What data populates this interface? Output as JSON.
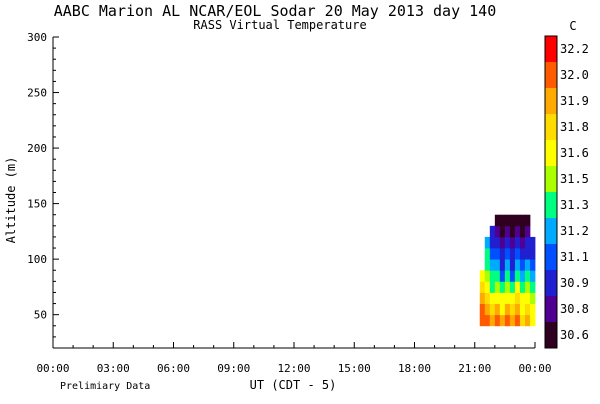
{
  "chart_data": {
    "type": "heatmap",
    "title": "AABC Marion AL  NCAR/EOL Sodar  20 May 2013  day 140",
    "subtitle": "RASS Virtual Temperature",
    "xlabel": "UT  (CDT - 5)",
    "ylabel": "Altitude (m)",
    "footer_left": "Prelimiary Data",
    "x_tick_labels": [
      "00:00",
      "03:00",
      "06:00",
      "09:00",
      "12:00",
      "15:00",
      "18:00",
      "21:00",
      "00:00"
    ],
    "x_ticks_hours": [
      0,
      3,
      6,
      9,
      12,
      15,
      18,
      21,
      24
    ],
    "xlim_hours": [
      0,
      24
    ],
    "y_ticks": [
      50,
      100,
      150,
      200,
      250,
      300
    ],
    "ylim": [
      20,
      300
    ],
    "colorbar": {
      "unit": "C",
      "labels": [
        "32.2",
        "32.0",
        "31.9",
        "31.8",
        "31.6",
        "31.5",
        "31.3",
        "31.2",
        "31.1",
        "30.9",
        "30.8",
        "30.6"
      ],
      "colors": [
        "#ff0000",
        "#ff5a00",
        "#ffaa00",
        "#ffdc00",
        "#ffff00",
        "#aaff00",
        "#00ff80",
        "#00aaff",
        "#0050ff",
        "#2020d0",
        "#500090",
        "#300020"
      ]
    },
    "data": {
      "times_hours": [
        21.25,
        21.5,
        21.75,
        22.0,
        22.25,
        22.5,
        22.75,
        23.0,
        23.25,
        23.5,
        23.75
      ],
      "altitudes_m": [
        40,
        50,
        60,
        70,
        80,
        90,
        100,
        110,
        120,
        130
      ],
      "top_altitude_m": [
        80,
        110,
        120,
        140,
        140,
        140,
        130,
        140,
        140,
        160,
        110
      ],
      "values_C": [
        [
          32.1,
          32.1,
          31.9,
          32.0,
          31.9,
          32.1,
          31.9,
          32.0,
          31.8,
          31.9,
          31.7
        ],
        [
          32.0,
          31.9,
          31.8,
          31.9,
          31.7,
          31.9,
          31.8,
          31.9,
          31.7,
          31.8,
          31.6
        ],
        [
          31.9,
          31.8,
          31.6,
          31.7,
          31.6,
          31.7,
          31.6,
          31.8,
          31.6,
          31.7,
          31.5
        ],
        [
          31.8,
          31.6,
          31.4,
          31.5,
          31.3,
          31.5,
          31.3,
          31.6,
          31.4,
          31.5,
          31.3
        ],
        [
          31.7,
          31.5,
          31.3,
          31.3,
          31.1,
          31.3,
          31.1,
          31.4,
          31.2,
          31.3,
          31.2
        ],
        [
          31.6,
          31.4,
          31.2,
          31.2,
          31.0,
          31.2,
          31.0,
          31.2,
          31.1,
          31.2,
          31.1
        ],
        [
          31.5,
          31.3,
          31.1,
          31.1,
          30.9,
          31.1,
          30.9,
          31.1,
          30.9,
          31.0,
          31.0
        ],
        [
          31.5,
          31.2,
          31.0,
          30.9,
          30.8,
          30.9,
          30.8,
          30.9,
          30.8,
          30.9,
          30.9
        ],
        [
          31.4,
          31.1,
          30.9,
          30.8,
          30.7,
          30.8,
          30.7,
          30.8,
          30.7,
          30.8,
          30.9
        ],
        [
          31.4,
          31.0,
          30.8,
          30.7,
          30.6,
          30.7,
          30.6,
          30.7,
          30.6,
          30.7,
          30.8
        ]
      ]
    }
  }
}
